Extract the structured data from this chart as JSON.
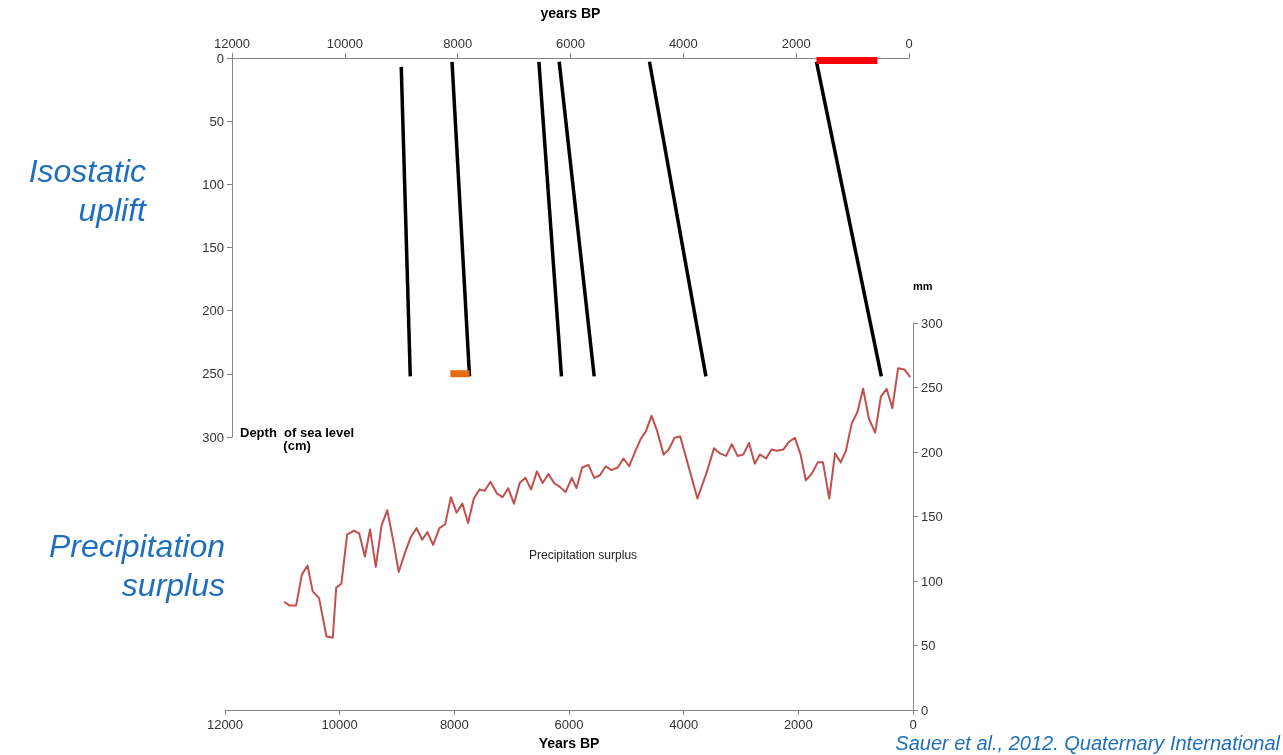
{
  "chart_data": [
    {
      "type": "line",
      "xlabel": "years BP",
      "xlim": [
        12000,
        0
      ],
      "xticks": [
        12000,
        10000,
        8000,
        6000,
        4000,
        2000,
        0
      ],
      "ylim": [
        300,
        0
      ],
      "yticks": [
        0,
        50,
        100,
        150,
        200,
        250,
        300
      ],
      "marker": "none",
      "annotations": [
        "Isostatic uplift",
        "Precipitation surplus",
        "Sauer et al., 2012. Quaternary International",
        "Depth  of sea level\n(cm)"
      ],
      "series": [
        {
          "color": "#000000",
          "x": [
            9000,
            8840
          ],
          "values": [
            7,
            252
          ]
        },
        {
          "color": "#000000",
          "x": [
            8100,
            7790
          ],
          "values": [
            3,
            252
          ]
        },
        {
          "color": "#000000",
          "x": [
            6560,
            6160
          ],
          "values": [
            3,
            252
          ]
        },
        {
          "color": "#000000",
          "x": [
            6200,
            5580
          ],
          "values": [
            3,
            252
          ]
        },
        {
          "color": "#000000",
          "x": [
            4600,
            3600
          ],
          "values": [
            3,
            252
          ]
        },
        {
          "color": "#000000",
          "x": [
            1640,
            490
          ],
          "values": [
            3,
            252
          ]
        },
        {
          "color": "#ff0000",
          "x": [
            1640,
            560
          ],
          "values": [
            2,
            2
          ]
        },
        {
          "color": "#e46c0a",
          "x": [
            8130,
            7790
          ],
          "values": [
            250,
            250
          ]
        }
      ]
    },
    {
      "type": "line",
      "xlabel": "Years BP",
      "y2label": "mm",
      "xlim": [
        12000,
        0
      ],
      "xticks": [
        12000,
        10000,
        8000,
        6000,
        4000,
        2000,
        0
      ],
      "y2lim": [
        0,
        300
      ],
      "y2ticks": [
        0,
        50,
        100,
        150,
        200,
        250,
        300
      ],
      "marker": "none",
      "series": [
        {
          "name": "Precipitation surplus",
          "color": "#c0504d",
          "axis": "y2",
          "x": [
            10970,
            10870,
            10760,
            10660,
            10560,
            10470,
            10360,
            10230,
            10120,
            10060,
            9970,
            9870,
            9750,
            9660,
            9560,
            9470,
            9370,
            9270,
            9170,
            9060,
            8970,
            8860,
            8760,
            8660,
            8560,
            8470,
            8370,
            8260,
            8160,
            8060,
            7960,
            7860,
            7760,
            7660,
            7560,
            7470,
            7370,
            7260,
            7160,
            7060,
            6960,
            6860,
            6760,
            6660,
            6560,
            6460,
            6360,
            6260,
            6160,
            6060,
            5950,
            5870,
            5770,
            5660,
            5560,
            5460,
            5360,
            5260,
            5150,
            5050,
            4950,
            4850,
            4750,
            4660,
            4560,
            4460,
            4350,
            4260,
            4160,
            4060,
            3860,
            3760,
            3600,
            3470,
            3370,
            3260,
            3160,
            3060,
            2960,
            2860,
            2760,
            2670,
            2560,
            2470,
            2370,
            2260,
            2160,
            2060,
            1960,
            1870,
            1770,
            1660,
            1570,
            1460,
            1360,
            1260,
            1170,
            1070,
            970,
            870,
            770,
            660,
            560,
            460,
            360,
            260,
            150,
            50
          ],
          "values": [
            84,
            81,
            81,
            105,
            112,
            92,
            87,
            57,
            56,
            95,
            98,
            136,
            139,
            137,
            119,
            140,
            111,
            143,
            155,
            130,
            107,
            122,
            134,
            141,
            132,
            138,
            128,
            141,
            144,
            165,
            153,
            160,
            145,
            164,
            171,
            170,
            177,
            168,
            165,
            172,
            160,
            176,
            180,
            171,
            185,
            176,
            183,
            176,
            173,
            169,
            180,
            172,
            188,
            190,
            180,
            182,
            189,
            186,
            188,
            195,
            189,
            200,
            210,
            216,
            228,
            216,
            198,
            202,
            211,
            212,
            180,
            164,
            184,
            203,
            199,
            197,
            206,
            197,
            198,
            207,
            191,
            198,
            195,
            202,
            201,
            202,
            208,
            211,
            198,
            178,
            183,
            192,
            192,
            164,
            199,
            192,
            201,
            222,
            231,
            249,
            226,
            215,
            243,
            249,
            234,
            265,
            264,
            258
          ]
        }
      ]
    }
  ]
}
